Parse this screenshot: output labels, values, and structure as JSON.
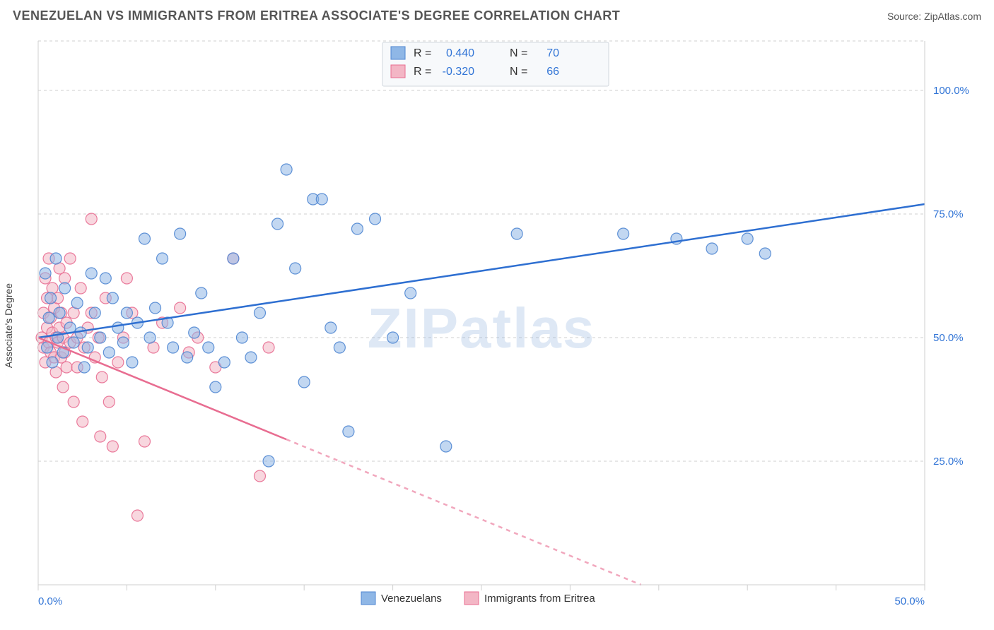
{
  "header": {
    "title": "VENEZUELAN VS IMMIGRANTS FROM ERITREA ASSOCIATE'S DEGREE CORRELATION CHART",
    "source": "Source: ZipAtlas.com"
  },
  "chart": {
    "type": "scatter",
    "ylabel": "Associate's Degree",
    "watermark": "ZIPatlas",
    "background_color": "#ffffff",
    "grid_color": "#cfcfcf",
    "axis_label_color": "#3275d6",
    "xlim": [
      0,
      50
    ],
    "ylim": [
      0,
      110
    ],
    "xticks": [
      {
        "v": 0,
        "label": "0.0%"
      },
      {
        "v": 5
      },
      {
        "v": 10
      },
      {
        "v": 15
      },
      {
        "v": 20
      },
      {
        "v": 25
      },
      {
        "v": 30
      },
      {
        "v": 35
      },
      {
        "v": 40
      },
      {
        "v": 45
      },
      {
        "v": 50,
        "label": "50.0%"
      }
    ],
    "yticks": [
      {
        "v": 25,
        "label": "25.0%"
      },
      {
        "v": 50,
        "label": "50.0%"
      },
      {
        "v": 75,
        "label": "75.0%"
      },
      {
        "v": 100,
        "label": "100.0%"
      }
    ],
    "marker_radius": 8,
    "marker_opacity": 0.55,
    "series": [
      {
        "id": "venezuelans",
        "label": "Venezuelans",
        "fill": "#8fb7e6",
        "stroke": "#4f86d1",
        "trend_color": "#2e6fd1",
        "r_value": "0.440",
        "n_value": "70",
        "trend": {
          "x1": 0,
          "y1": 50,
          "x2": 50,
          "y2": 77,
          "dash_after": null
        },
        "points": [
          [
            0.4,
            63
          ],
          [
            0.5,
            48
          ],
          [
            0.6,
            54
          ],
          [
            0.7,
            58
          ],
          [
            0.8,
            45
          ],
          [
            1.0,
            66
          ],
          [
            1.1,
            50
          ],
          [
            1.2,
            55
          ],
          [
            1.4,
            47
          ],
          [
            1.5,
            60
          ],
          [
            1.8,
            52
          ],
          [
            2.0,
            49
          ],
          [
            2.2,
            57
          ],
          [
            2.4,
            51
          ],
          [
            2.6,
            44
          ],
          [
            2.8,
            48
          ],
          [
            3.0,
            63
          ],
          [
            3.2,
            55
          ],
          [
            3.5,
            50
          ],
          [
            3.8,
            62
          ],
          [
            4.0,
            47
          ],
          [
            4.2,
            58
          ],
          [
            4.5,
            52
          ],
          [
            4.8,
            49
          ],
          [
            5.0,
            55
          ],
          [
            5.3,
            45
          ],
          [
            5.6,
            53
          ],
          [
            6.0,
            70
          ],
          [
            6.3,
            50
          ],
          [
            6.6,
            56
          ],
          [
            7.0,
            66
          ],
          [
            7.3,
            53
          ],
          [
            7.6,
            48
          ],
          [
            8.0,
            71
          ],
          [
            8.4,
            46
          ],
          [
            8.8,
            51
          ],
          [
            9.2,
            59
          ],
          [
            9.6,
            48
          ],
          [
            10.0,
            40
          ],
          [
            10.5,
            45
          ],
          [
            11.0,
            66
          ],
          [
            11.5,
            50
          ],
          [
            12.0,
            46
          ],
          [
            12.5,
            55
          ],
          [
            13.0,
            25
          ],
          [
            13.5,
            73
          ],
          [
            14.0,
            84
          ],
          [
            14.5,
            64
          ],
          [
            15.0,
            41
          ],
          [
            15.5,
            78
          ],
          [
            16.0,
            78
          ],
          [
            16.5,
            52
          ],
          [
            17.0,
            48
          ],
          [
            17.5,
            31
          ],
          [
            18.0,
            72
          ],
          [
            19.0,
            74
          ],
          [
            20.0,
            50
          ],
          [
            21.0,
            59
          ],
          [
            23.0,
            28
          ],
          [
            27.0,
            71
          ],
          [
            33.0,
            71
          ],
          [
            36.0,
            70
          ],
          [
            38.0,
            68
          ],
          [
            40.0,
            70
          ],
          [
            41.0,
            67
          ]
        ]
      },
      {
        "id": "eritrea",
        "label": "Immigrants from Eritrea",
        "fill": "#f3b6c5",
        "stroke": "#e86d91",
        "trend_color": "#e86d91",
        "r_value": "-0.320",
        "n_value": "66",
        "trend": {
          "x1": 0,
          "y1": 50,
          "x2": 34,
          "y2": 0,
          "dash_after": 14
        },
        "points": [
          [
            0.2,
            50
          ],
          [
            0.3,
            55
          ],
          [
            0.3,
            48
          ],
          [
            0.4,
            62
          ],
          [
            0.4,
            45
          ],
          [
            0.5,
            58
          ],
          [
            0.5,
            52
          ],
          [
            0.6,
            66
          ],
          [
            0.6,
            49
          ],
          [
            0.7,
            54
          ],
          [
            0.7,
            47
          ],
          [
            0.8,
            60
          ],
          [
            0.8,
            51
          ],
          [
            0.9,
            46
          ],
          [
            0.9,
            56
          ],
          [
            1.0,
            50
          ],
          [
            1.0,
            43
          ],
          [
            1.1,
            58
          ],
          [
            1.1,
            49
          ],
          [
            1.2,
            64
          ],
          [
            1.2,
            52
          ],
          [
            1.3,
            46
          ],
          [
            1.3,
            55
          ],
          [
            1.4,
            40
          ],
          [
            1.4,
            50
          ],
          [
            1.5,
            62
          ],
          [
            1.5,
            47
          ],
          [
            1.6,
            53
          ],
          [
            1.6,
            44
          ],
          [
            1.8,
            66
          ],
          [
            1.8,
            49
          ],
          [
            2.0,
            55
          ],
          [
            2.0,
            37
          ],
          [
            2.2,
            50
          ],
          [
            2.2,
            44
          ],
          [
            2.4,
            60
          ],
          [
            2.5,
            33
          ],
          [
            2.6,
            48
          ],
          [
            2.8,
            52
          ],
          [
            3.0,
            74
          ],
          [
            3.0,
            55
          ],
          [
            3.2,
            46
          ],
          [
            3.4,
            50
          ],
          [
            3.5,
            30
          ],
          [
            3.6,
            42
          ],
          [
            3.8,
            58
          ],
          [
            4.0,
            37
          ],
          [
            4.2,
            28
          ],
          [
            4.5,
            45
          ],
          [
            4.8,
            50
          ],
          [
            5.0,
            62
          ],
          [
            5.3,
            55
          ],
          [
            5.6,
            14
          ],
          [
            6.0,
            29
          ],
          [
            6.5,
            48
          ],
          [
            7.0,
            53
          ],
          [
            8.0,
            56
          ],
          [
            8.5,
            47
          ],
          [
            9.0,
            50
          ],
          [
            10.0,
            44
          ],
          [
            11.0,
            66
          ],
          [
            12.5,
            22
          ],
          [
            13.0,
            48
          ]
        ]
      }
    ],
    "stats_box": {
      "r_label": "R =",
      "n_label": "N ="
    },
    "legend": {
      "items": [
        "venezuelans",
        "eritrea"
      ]
    }
  }
}
